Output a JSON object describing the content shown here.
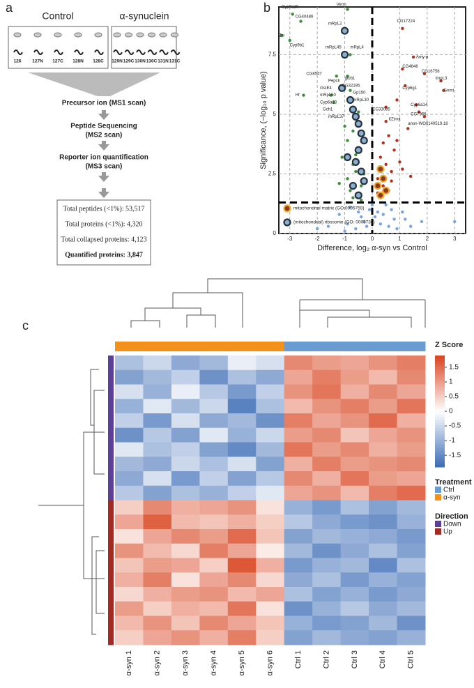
{
  "panel_labels": [
    "a",
    "b",
    "c"
  ],
  "workflow": {
    "groups": [
      "Control",
      "α-synuclein"
    ],
    "channels": [
      [
        "126",
        "127N",
        "127C",
        "128N",
        "128C"
      ],
      [
        "129N",
        "129C",
        "130N",
        "130C",
        "131N",
        "131C"
      ]
    ],
    "steps": [
      "Precursor ion (MS1 scan)",
      "Peptide Sequencing",
      "(MS2 scan)",
      "Reporter ion quantification",
      "(MS3 scan)"
    ],
    "summary": [
      "Total peptides (<1%): 53,517",
      "Total proteins (<1%): 4,320",
      "Total collapsed proteins: 4,123",
      "Quantified proteins: 3,847"
    ]
  },
  "chart_data": [
    {
      "type": "scatter",
      "xlabel": "Difference, log₂ α-syn vs Control",
      "ylabel": "Significance, (−log₁₀ p value)",
      "xlim": [
        -3.4,
        3.4
      ],
      "ylim": [
        0,
        9.5
      ],
      "xticks": [
        -3,
        -2,
        -1,
        0,
        1,
        2,
        3
      ],
      "yticks": [
        0,
        2.5,
        5,
        7.5
      ],
      "grid": true,
      "threshold_x": 0,
      "threshold_y": 1.3,
      "legend": "lower left",
      "series": [
        {
          "color": "#3f8f3a",
          "x": [
            -2.9,
            -2.6,
            -3.3,
            -3.0,
            -0.9,
            -0.8,
            -1.3,
            -0.9,
            -2.5,
            -1.5,
            -1.4,
            -0.8,
            -0.6,
            -0.7,
            -0.9,
            -0.5,
            -1.1,
            -0.7,
            -0.6,
            -0.9,
            -0.4,
            -0.8,
            -1.2,
            -0.5,
            -0.7,
            -0.6,
            -0.3,
            -1.0,
            -0.5,
            -0.4
          ],
          "values": [
            9.2,
            8.9,
            8.3,
            8.1,
            9.4,
            7.5,
            6.6,
            6.6,
            5.8,
            5.8,
            5.5,
            6.0,
            4.8,
            4.3,
            3.9,
            3.6,
            3.2,
            2.9,
            2.6,
            2.3,
            2.0,
            1.8,
            2.1,
            1.6,
            1.5,
            3.3,
            2.5,
            4.5,
            5.1,
            1.4
          ]
        },
        {
          "color": "#b0321e",
          "x": [
            1.1,
            1.5,
            1.1,
            1.9,
            2.5,
            1.2,
            2.6,
            1.6,
            0.5,
            1.7,
            1.9,
            0.9,
            1.3,
            0.6,
            0.4,
            0.8,
            0.3,
            0.5,
            1.0,
            0.7,
            0.2,
            0.4,
            0.6,
            1.4,
            0.3,
            0.5,
            0.9,
            0.2,
            0.7,
            1.1
          ],
          "values": [
            8.6,
            7.4,
            6.9,
            6.7,
            6.4,
            6.2,
            6.0,
            5.4,
            5.3,
            5.1,
            4.9,
            5.6,
            4.4,
            4.1,
            3.8,
            3.5,
            3.2,
            2.9,
            3.0,
            2.6,
            2.3,
            2.0,
            1.8,
            2.4,
            1.5,
            4.7,
            3.9,
            1.7,
            2.2,
            2.7
          ]
        },
        {
          "color": "#7ba3dd",
          "x": [
            -1.6,
            -1.2,
            -0.8,
            -0.5,
            -0.3,
            -0.1,
            0.1,
            0.3,
            0.5,
            0.8,
            1.1,
            1.4,
            1.8,
            3.0,
            -2.0,
            -0.9,
            -0.6,
            0.2,
            0.6,
            0.9,
            -0.4,
            0.0,
            0.4,
            1.2,
            -1.0,
            -0.2,
            0.7
          ],
          "values": [
            0.3,
            0.8,
            1.1,
            0.9,
            0.5,
            1.0,
            0.7,
            0.4,
            1.2,
            0.6,
            0.9,
            0.3,
            0.5,
            0.5,
            0.2,
            0.4,
            0.2,
            0.9,
            0.3,
            0.2,
            0.7,
            1.2,
            0.8,
            0.6,
            0.1,
            0.3,
            1.0
          ]
        },
        {
          "name": "mitochondrial matrix (GO:0005759)",
          "color": "#8a3a1e",
          "ring": "#f0a830",
          "x": [
            0.3,
            0.4,
            0.2,
            0.5,
            0.3
          ],
          "values": [
            2.7,
            2.3,
            2.0,
            1.8,
            1.6
          ]
        },
        {
          "name": "(mitochondrial) ribosome (GO: 0003735)",
          "color": "#8aaecc",
          "ring": "#24313f",
          "x": [
            -1.0,
            -1.0,
            -1.1,
            -0.8,
            -0.7,
            -0.6,
            -0.5,
            -0.4,
            -0.3,
            -0.5,
            -0.6,
            -0.4,
            -0.9,
            -0.7,
            -0.5,
            -0.3
          ],
          "values": [
            8.5,
            7.5,
            6.1,
            5.6,
            5.2,
            4.9,
            4.6,
            4.2,
            3.9,
            3.5,
            3.0,
            2.6,
            3.2,
            2.0,
            1.6,
            2.2
          ]
        }
      ],
      "annotations": [
        {
          "text": "Cyp6a20",
          "x": -3.3,
          "y": 9.5
        },
        {
          "text": "CG40486",
          "x": -2.8,
          "y": 9.1
        },
        {
          "text": "Verm",
          "x": -1.3,
          "y": 9.6
        },
        {
          "text": "mRpL2",
          "x": -1.6,
          "y": 8.8
        },
        {
          "text": "CG17224",
          "x": 0.9,
          "y": 8.9
        },
        {
          "text": "Zw",
          "x": -3.4,
          "y": 8.3
        },
        {
          "text": "Cyp9b1",
          "x": -3.0,
          "y": 7.9
        },
        {
          "text": "mRpL45",
          "x": -1.7,
          "y": 7.8
        },
        {
          "text": "mRpL4",
          "x": -0.8,
          "y": 7.8
        },
        {
          "text": "Amy-p",
          "x": 1.6,
          "y": 7.4
        },
        {
          "text": "CG8547",
          "x": -2.4,
          "y": 6.7
        },
        {
          "text": "Pepck",
          "x": -1.6,
          "y": 6.4
        },
        {
          "text": "glob1",
          "x": -1.0,
          "y": 6.5
        },
        {
          "text": "CG4646",
          "x": 1.1,
          "y": 7.0
        },
        {
          "text": "CG16758",
          "x": 1.8,
          "y": 6.8
        },
        {
          "text": "ImpL3",
          "x": 2.3,
          "y": 6.5
        },
        {
          "text": "GstE4",
          "x": -1.9,
          "y": 6.1
        },
        {
          "text": "CG32195",
          "x": -1.1,
          "y": 6.2
        },
        {
          "text": "mRpL50",
          "x": -1.9,
          "y": 5.8
        },
        {
          "text": "Gp150",
          "x": -0.7,
          "y": 5.9
        },
        {
          "text": "Cyp6g1",
          "x": 1.1,
          "y": 6.1
        },
        {
          "text": "Gnmt",
          "x": 2.6,
          "y": 6.0
        },
        {
          "text": "Hf",
          "x": -2.8,
          "y": 5.8
        },
        {
          "text": "Cyp6a23",
          "x": -1.9,
          "y": 5.5
        },
        {
          "text": "mRpL30",
          "x": -0.7,
          "y": 5.6
        },
        {
          "text": "Gch1",
          "x": -1.8,
          "y": 5.2
        },
        {
          "text": "Cyp6a14",
          "x": 1.4,
          "y": 5.4
        },
        {
          "text": "mRpL37",
          "x": -1.6,
          "y": 4.9
        },
        {
          "text": "CG33085",
          "x": 0.0,
          "y": 5.2
        },
        {
          "text": "CG7966",
          "x": 1.4,
          "y": 5.0
        },
        {
          "text": "l(2)not",
          "x": 0.6,
          "y": 4.8
        },
        {
          "text": "anon-WO0140519.18",
          "x": 1.3,
          "y": 4.6
        }
      ]
    },
    {
      "type": "heatmap",
      "columns": [
        "α-syn 1",
        "α-syn 2",
        "α-syn 3",
        "α-syn 4",
        "α-syn 5",
        "α-syn 6",
        "Ctrl 1",
        "Ctrl 2",
        "Ctrl 3",
        "Ctrl 4",
        "Ctrl 5"
      ],
      "column_groups": [
        "α-syn",
        "α-syn",
        "α-syn",
        "α-syn",
        "α-syn",
        "α-syn",
        "Ctrl",
        "Ctrl",
        "Ctrl",
        "Ctrl",
        "Ctrl"
      ],
      "row_groups": [
        "Down",
        "Down",
        "Down",
        "Down",
        "Down",
        "Down",
        "Down",
        "Down",
        "Down",
        "Down",
        "Up",
        "Up",
        "Up",
        "Up",
        "Up",
        "Up",
        "Up",
        "Up",
        "Up",
        "Up"
      ],
      "rows": [
        [
          -0.8,
          -0.5,
          -1.1,
          -0.9,
          -0.2,
          -0.4,
          1.2,
          1.0,
          0.9,
          1.1,
          1.3
        ],
        [
          -1.2,
          -0.9,
          -0.6,
          -1.4,
          -0.8,
          -1.1,
          0.9,
          1.3,
          1.0,
          0.7,
          1.2
        ],
        [
          -0.4,
          -1.0,
          -0.2,
          -0.7,
          -1.3,
          -0.6,
          1.1,
          1.4,
          0.8,
          1.2,
          0.9
        ],
        [
          -1.0,
          -0.3,
          -0.9,
          -0.5,
          -1.6,
          -0.8,
          0.7,
          1.1,
          1.3,
          1.0,
          1.4
        ],
        [
          -0.6,
          -1.3,
          -0.4,
          -1.1,
          -0.9,
          -1.4,
          1.3,
          0.9,
          1.1,
          1.5,
          0.8
        ],
        [
          -1.4,
          -0.7,
          -1.2,
          -0.3,
          -1.0,
          -0.5,
          1.0,
          1.2,
          0.6,
          0.9,
          1.1
        ],
        [
          -0.3,
          -0.8,
          -0.6,
          -1.2,
          -1.5,
          -0.9,
          1.4,
          1.0,
          1.2,
          0.8,
          1.0
        ],
        [
          -0.9,
          -1.1,
          -0.5,
          -0.8,
          -0.4,
          -1.2,
          0.8,
          1.3,
          1.0,
          1.1,
          1.2
        ],
        [
          -1.1,
          -0.4,
          -1.3,
          -0.6,
          -1.2,
          -0.7,
          1.2,
          0.8,
          1.4,
          1.0,
          0.9
        ],
        [
          -0.7,
          -1.2,
          -0.8,
          -1.0,
          -0.6,
          -0.3,
          0.9,
          1.1,
          0.7,
          1.3,
          1.5
        ],
        [
          0.5,
          1.2,
          0.8,
          0.9,
          1.1,
          0.3,
          -1.0,
          -1.3,
          -0.8,
          -1.2,
          -0.9
        ],
        [
          0.9,
          1.6,
          0.7,
          0.6,
          0.8,
          0.5,
          -0.7,
          -1.1,
          -1.3,
          -1.4,
          -1.0
        ],
        [
          0.3,
          0.9,
          1.2,
          1.0,
          1.5,
          0.6,
          -1.2,
          -0.9,
          -1.0,
          -1.1,
          -1.3
        ],
        [
          1.1,
          0.7,
          0.4,
          1.3,
          0.9,
          0.2,
          -0.9,
          -1.4,
          -1.1,
          -0.8,
          -1.2
        ],
        [
          0.6,
          1.0,
          0.9,
          0.5,
          1.7,
          0.8,
          -1.3,
          -1.0,
          -0.9,
          -1.5,
          -0.8
        ],
        [
          0.8,
          1.3,
          0.3,
          0.9,
          1.2,
          0.4,
          -1.1,
          -0.8,
          -1.3,
          -1.0,
          -1.2
        ],
        [
          0.4,
          0.8,
          1.0,
          1.1,
          0.7,
          0.9,
          -0.8,
          -1.2,
          -1.0,
          -1.3,
          -1.1
        ],
        [
          1.0,
          0.5,
          0.8,
          0.7,
          1.4,
          0.3,
          -1.4,
          -1.0,
          -0.7,
          -1.1,
          -0.9
        ],
        [
          0.7,
          1.1,
          0.6,
          1.2,
          0.9,
          0.6,
          -1.0,
          -1.3,
          -1.2,
          -0.9,
          -1.4
        ],
        [
          0.5,
          0.9,
          1.1,
          0.8,
          1.3,
          0.5,
          -1.2,
          -0.9,
          -1.1,
          -1.2,
          -1.0
        ]
      ],
      "colorbar": {
        "title": "Z Score",
        "zlim": [
          -1.9,
          1.9
        ],
        "ticks": [
          1.5,
          1,
          0.5,
          0,
          -0.5,
          -1,
          -1.5
        ],
        "colors": [
          "#3a6bb5",
          "#ffffff",
          "#d8441f"
        ]
      },
      "treatment_legend": {
        "title": "Treatment",
        "items": [
          {
            "name": "Ctrl",
            "color": "#6a9bd1"
          },
          {
            "name": "α-syn",
            "color": "#f2921d"
          }
        ]
      },
      "direction_legend": {
        "title": "Direction",
        "items": [
          {
            "name": "Down",
            "color": "#5b3f99"
          },
          {
            "name": "Up",
            "color": "#a12a25"
          }
        ]
      }
    }
  ]
}
